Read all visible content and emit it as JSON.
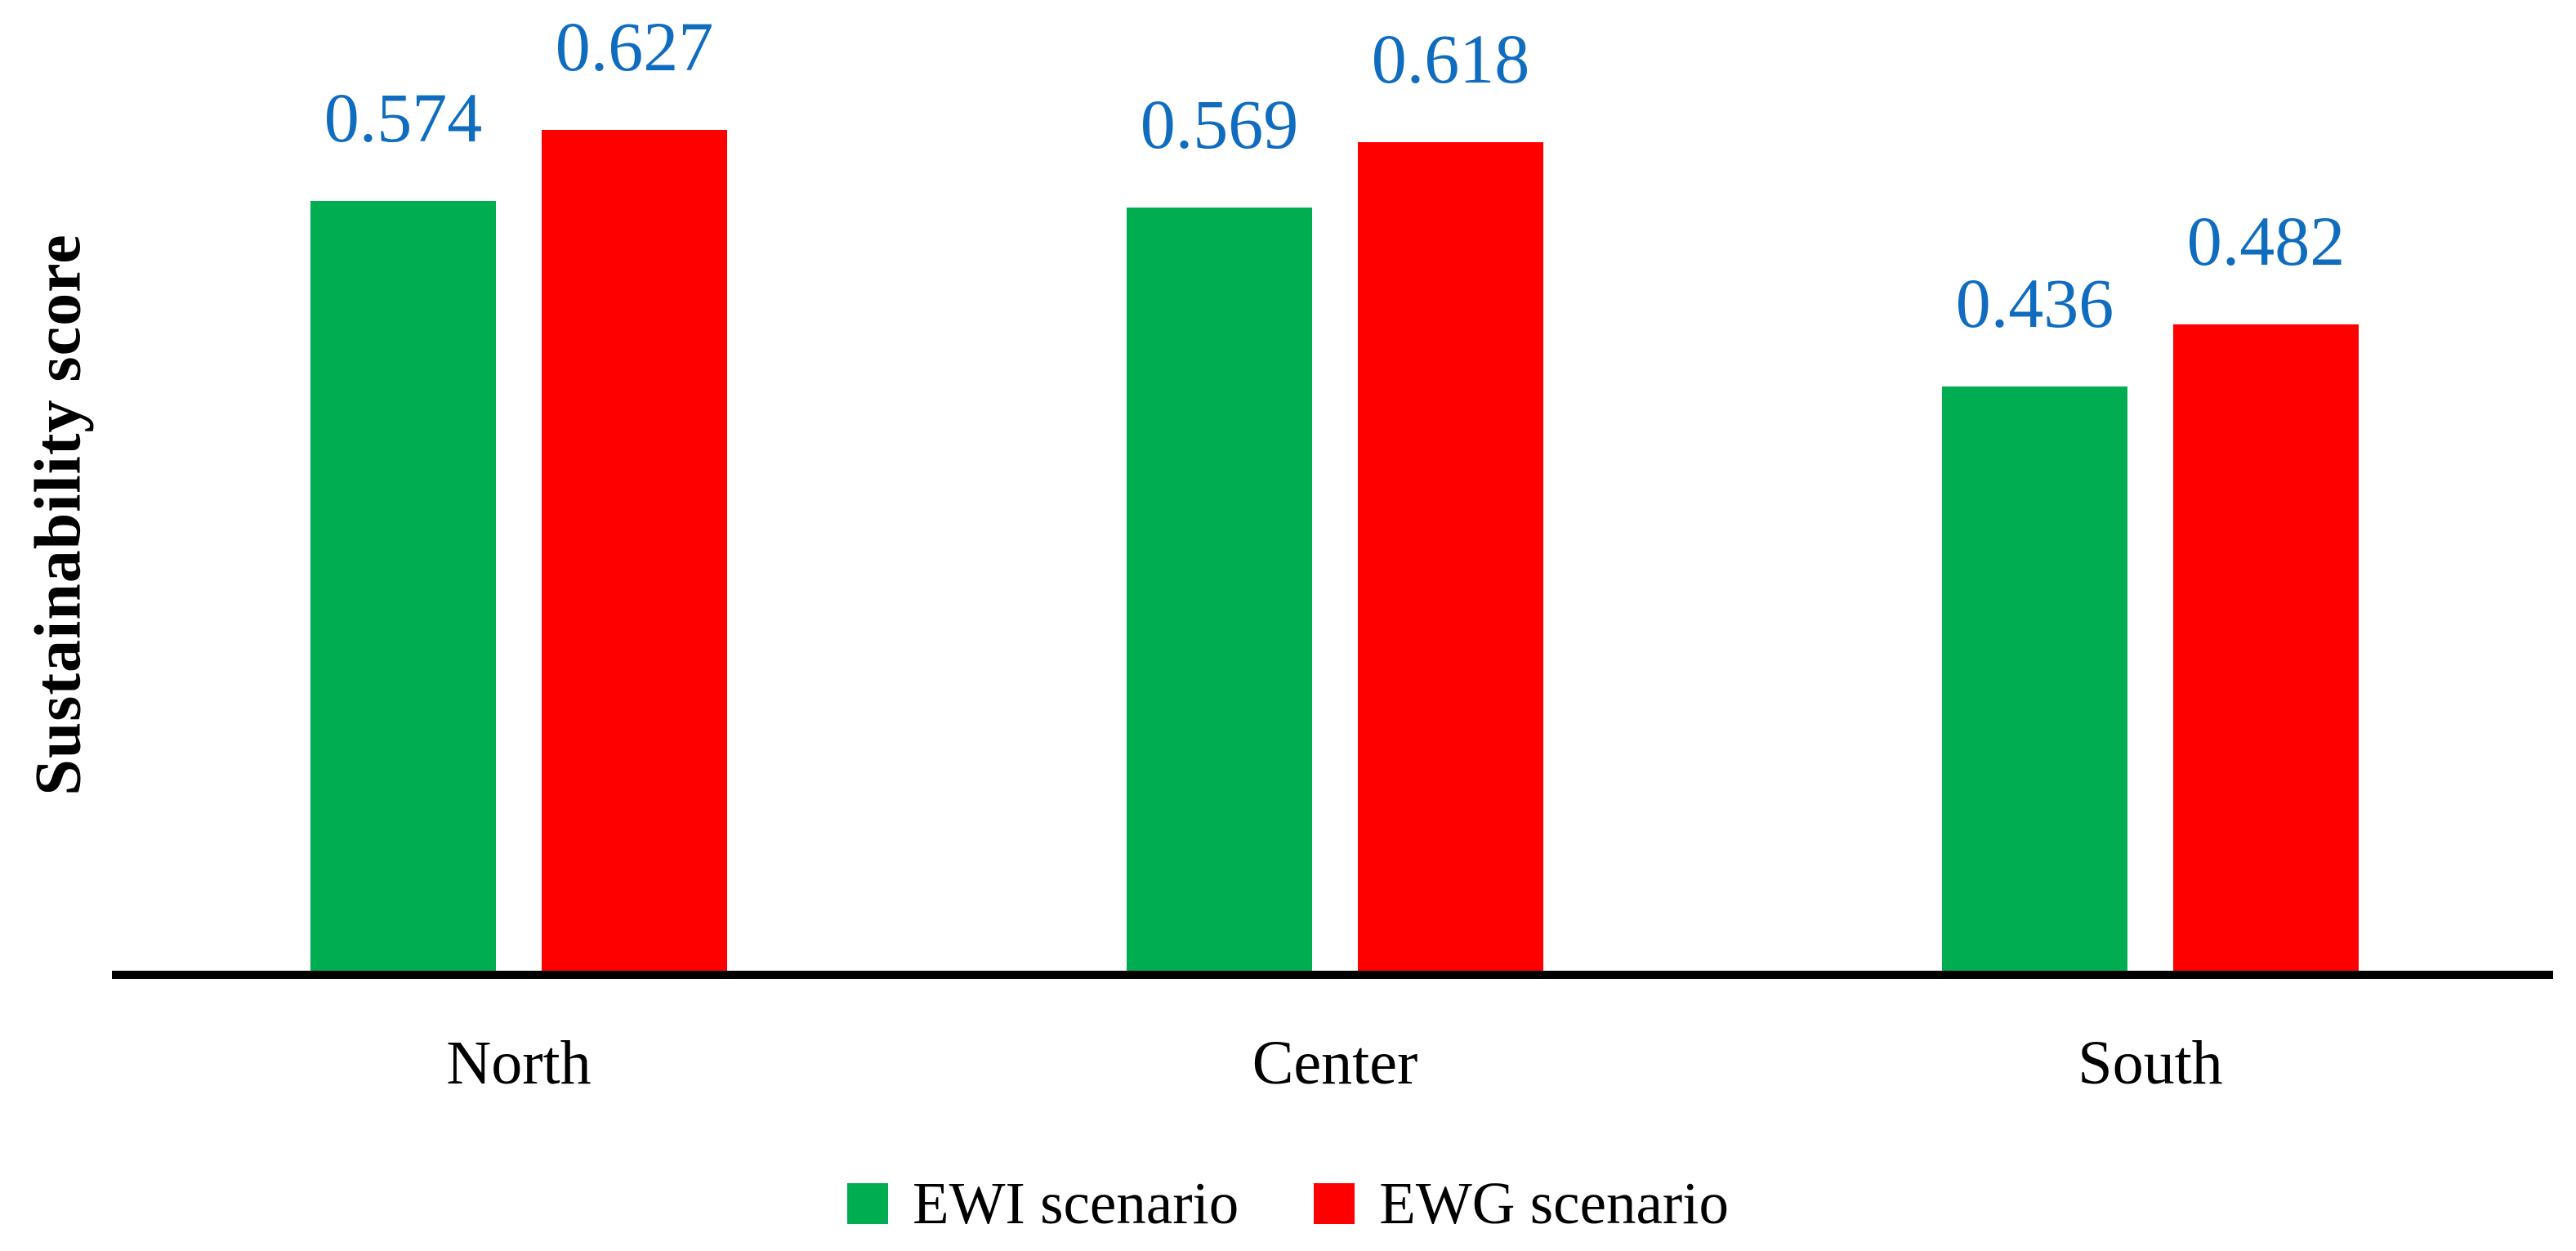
{
  "chart_data": {
    "type": "bar",
    "title": "",
    "xlabel": "",
    "ylabel": "Sustainability score",
    "categories": [
      "North",
      "Center",
      "South"
    ],
    "series": [
      {
        "name": "EWI scenario",
        "color": "#00AD50",
        "values": [
          0.574,
          0.569,
          0.436
        ]
      },
      {
        "name": "EWG scenario",
        "color": "#FF0000",
        "values": [
          0.627,
          0.618,
          0.482
        ]
      }
    ],
    "data_labels": {
      "shown": true,
      "color": "#0F6CBE",
      "decimals": 3,
      "texts": [
        [
          "0.574",
          "0.569",
          "0.436"
        ],
        [
          "0.627",
          "0.618",
          "0.482"
        ]
      ]
    },
    "ylim": [
      0,
      0.75
    ],
    "grid": false,
    "y_axis_ticks_shown": false,
    "legend_position": "bottom",
    "axis_line_color": "#000000",
    "background_color": "#FFFFFF"
  }
}
